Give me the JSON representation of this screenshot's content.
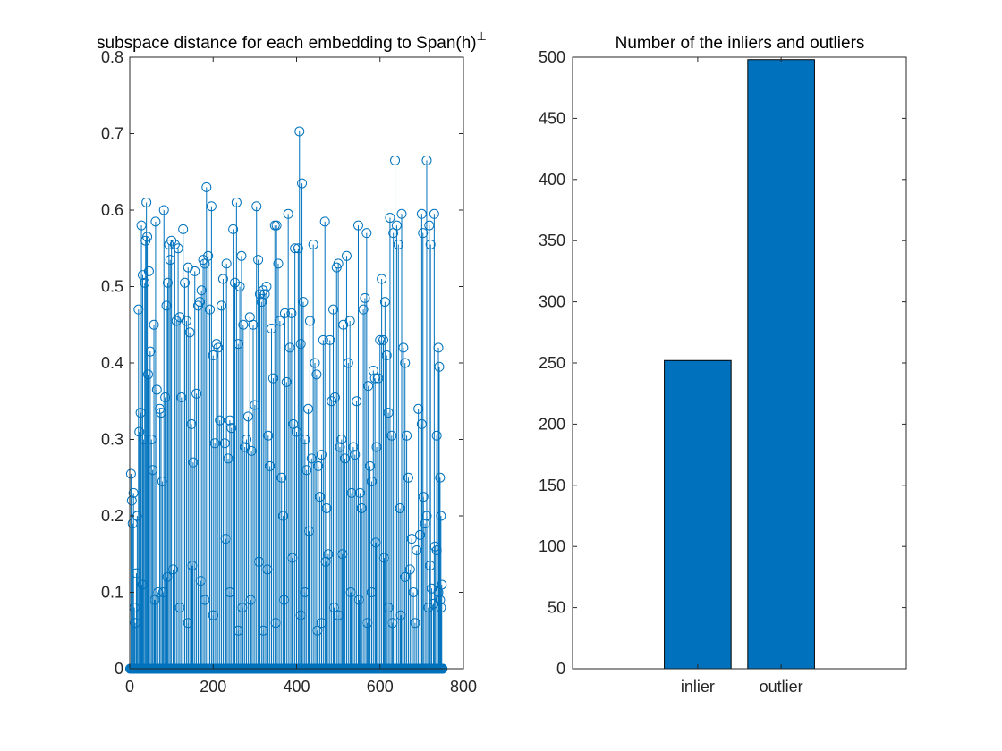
{
  "chart_data": [
    {
      "type": "stem",
      "title": "subspace distance for each embedding to Span(h)",
      "title_superscript": "⊥",
      "xlim": [
        0,
        800
      ],
      "ylim": [
        0,
        0.8
      ],
      "x_ticks": [
        "0",
        "200",
        "400",
        "600",
        "800"
      ],
      "y_ticks": [
        "0",
        "0.1",
        "0.2",
        "0.3",
        "0.4",
        "0.5",
        "0.6",
        "0.7",
        "0.8"
      ],
      "n_points": 750,
      "n_nonzero": 252,
      "color": "#0072BD",
      "marker": "circle",
      "grid": false,
      "points": [
        [
          3,
          0.255
        ],
        [
          5,
          0.22
        ],
        [
          7,
          0.19
        ],
        [
          9,
          0.23
        ],
        [
          11,
          0.08
        ],
        [
          13,
          0.06
        ],
        [
          16,
          0.125
        ],
        [
          18,
          0.2
        ],
        [
          21,
          0.47
        ],
        [
          23,
          0.31
        ],
        [
          26,
          0.335
        ],
        [
          28,
          0.58
        ],
        [
          31,
          0.515
        ],
        [
          33,
          0.3
        ],
        [
          36,
          0.505
        ],
        [
          38,
          0.56
        ],
        [
          40,
          0.61
        ],
        [
          42,
          0.565
        ],
        [
          44,
          0.385
        ],
        [
          46,
          0.52
        ],
        [
          49,
          0.415
        ],
        [
          52,
          0.3
        ],
        [
          55,
          0.26
        ],
        [
          58,
          0.45
        ],
        [
          62,
          0.585
        ],
        [
          65,
          0.365
        ],
        [
          68,
          0.1
        ],
        [
          72,
          0.34
        ],
        [
          75,
          0.335
        ],
        [
          78,
          0.245
        ],
        [
          82,
          0.6
        ],
        [
          85,
          0.355
        ],
        [
          88,
          0.475
        ],
        [
          91,
          0.505
        ],
        [
          94,
          0.555
        ],
        [
          97,
          0.535
        ],
        [
          100,
          0.56
        ],
        [
          104,
          0.13
        ],
        [
          108,
          0.555
        ],
        [
          112,
          0.455
        ],
        [
          116,
          0.55
        ],
        [
          120,
          0.46
        ],
        [
          124,
          0.355
        ],
        [
          128,
          0.575
        ],
        [
          132,
          0.505
        ],
        [
          136,
          0.455
        ],
        [
          140,
          0.525
        ],
        [
          144,
          0.44
        ],
        [
          148,
          0.32
        ],
        [
          152,
          0.27
        ],
        [
          156,
          0.52
        ],
        [
          160,
          0.36
        ],
        [
          164,
          0.475
        ],
        [
          168,
          0.48
        ],
        [
          172,
          0.495
        ],
        [
          176,
          0.535
        ],
        [
          180,
          0.53
        ],
        [
          184,
          0.63
        ],
        [
          188,
          0.54
        ],
        [
          192,
          0.47
        ],
        [
          196,
          0.605
        ],
        [
          200,
          0.41
        ],
        [
          204,
          0.295
        ],
        [
          208,
          0.425
        ],
        [
          212,
          0.42
        ],
        [
          216,
          0.325
        ],
        [
          220,
          0.475
        ],
        [
          224,
          0.51
        ],
        [
          228,
          0.295
        ],
        [
          232,
          0.53
        ],
        [
          236,
          0.275
        ],
        [
          240,
          0.325
        ],
        [
          244,
          0.315
        ],
        [
          248,
          0.575
        ],
        [
          252,
          0.505
        ],
        [
          256,
          0.61
        ],
        [
          260,
          0.425
        ],
        [
          264,
          0.5
        ],
        [
          268,
          0.54
        ],
        [
          272,
          0.45
        ],
        [
          276,
          0.29
        ],
        [
          280,
          0.3
        ],
        [
          284,
          0.33
        ],
        [
          288,
          0.46
        ],
        [
          292,
          0.285
        ],
        [
          296,
          0.45
        ],
        [
          300,
          0.345
        ],
        [
          304,
          0.605
        ],
        [
          308,
          0.535
        ],
        [
          312,
          0.49
        ],
        [
          316,
          0.48
        ],
        [
          320,
          0.495
        ],
        [
          324,
          0.49
        ],
        [
          328,
          0.5
        ],
        [
          332,
          0.305
        ],
        [
          336,
          0.265
        ],
        [
          340,
          0.445
        ],
        [
          344,
          0.38
        ],
        [
          348,
          0.58
        ],
        [
          352,
          0.58
        ],
        [
          356,
          0.53
        ],
        [
          360,
          0.455
        ],
        [
          364,
          0.25
        ],
        [
          368,
          0.2
        ],
        [
          372,
          0.465
        ],
        [
          376,
          0.375
        ],
        [
          380,
          0.595
        ],
        [
          384,
          0.42
        ],
        [
          388,
          0.465
        ],
        [
          392,
          0.32
        ],
        [
          396,
          0.55
        ],
        [
          400,
          0.31
        ],
        [
          404,
          0.55
        ],
        [
          407,
          0.703
        ],
        [
          410,
          0.425
        ],
        [
          413,
          0.635
        ],
        [
          416,
          0.48
        ],
        [
          420,
          0.3
        ],
        [
          424,
          0.26
        ],
        [
          428,
          0.34
        ],
        [
          432,
          0.455
        ],
        [
          436,
          0.275
        ],
        [
          440,
          0.555
        ],
        [
          444,
          0.4
        ],
        [
          448,
          0.385
        ],
        [
          452,
          0.265
        ],
        [
          456,
          0.225
        ],
        [
          460,
          0.28
        ],
        [
          464,
          0.43
        ],
        [
          468,
          0.585
        ],
        [
          472,
          0.21
        ],
        [
          476,
          0.15
        ],
        [
          480,
          0.43
        ],
        [
          484,
          0.35
        ],
        [
          488,
          0.47
        ],
        [
          492,
          0.355
        ],
        [
          496,
          0.525
        ],
        [
          500,
          0.53
        ],
        [
          504,
          0.29
        ],
        [
          508,
          0.3
        ],
        [
          512,
          0.45
        ],
        [
          516,
          0.275
        ],
        [
          520,
          0.54
        ],
        [
          524,
          0.4
        ],
        [
          528,
          0.455
        ],
        [
          532,
          0.23
        ],
        [
          536,
          0.29
        ],
        [
          540,
          0.28
        ],
        [
          544,
          0.35
        ],
        [
          548,
          0.58
        ],
        [
          552,
          0.23
        ],
        [
          556,
          0.21
        ],
        [
          560,
          0.47
        ],
        [
          564,
          0.485
        ],
        [
          568,
          0.57
        ],
        [
          572,
          0.37
        ],
        [
          576,
          0.265
        ],
        [
          580,
          0.245
        ],
        [
          584,
          0.39
        ],
        [
          588,
          0.38
        ],
        [
          592,
          0.29
        ],
        [
          596,
          0.38
        ],
        [
          600,
          0.43
        ],
        [
          604,
          0.51
        ],
        [
          608,
          0.43
        ],
        [
          612,
          0.48
        ],
        [
          616,
          0.41
        ],
        [
          620,
          0.335
        ],
        [
          624,
          0.59
        ],
        [
          628,
          0.305
        ],
        [
          632,
          0.57
        ],
        [
          636,
          0.665
        ],
        [
          640,
          0.58
        ],
        [
          644,
          0.555
        ],
        [
          648,
          0.21
        ],
        [
          652,
          0.595
        ],
        [
          656,
          0.42
        ],
        [
          660,
          0.4
        ],
        [
          664,
          0.305
        ],
        [
          668,
          0.25
        ],
        [
          672,
          0.13
        ],
        [
          676,
          0.17
        ],
        [
          680,
          0.1
        ],
        [
          684,
          0.06
        ],
        [
          688,
          0.155
        ],
        [
          692,
          0.34
        ],
        [
          696,
          0.175
        ],
        [
          700,
          0.32
        ],
        [
          704,
          0.225
        ],
        [
          708,
          0.19
        ],
        [
          712,
          0.2
        ],
        [
          716,
          0.08
        ],
        [
          720,
          0.135
        ],
        [
          724,
          0.105
        ],
        [
          728,
          0.085
        ],
        [
          732,
          0.16
        ],
        [
          736,
          0.155
        ],
        [
          740,
          0.1
        ],
        [
          744,
          0.09
        ],
        [
          746,
          0.2
        ],
        [
          700,
          0.595
        ],
        [
          703,
          0.57
        ],
        [
          712,
          0.665
        ],
        [
          718,
          0.58
        ],
        [
          721,
          0.555
        ],
        [
          730,
          0.595
        ],
        [
          736,
          0.305
        ],
        [
          740,
          0.42
        ],
        [
          742,
          0.395
        ],
        [
          744,
          0.25
        ],
        [
          748,
          0.11
        ],
        [
          746,
          0.08
        ],
        [
          150,
          0.135
        ],
        [
          170,
          0.115
        ],
        [
          230,
          0.17
        ],
        [
          310,
          0.14
        ],
        [
          330,
          0.13
        ],
        [
          390,
          0.145
        ],
        [
          430,
          0.18
        ],
        [
          470,
          0.14
        ],
        [
          510,
          0.15
        ],
        [
          590,
          0.165
        ],
        [
          610,
          0.145
        ],
        [
          660,
          0.12
        ],
        [
          60,
          0.09
        ],
        [
          90,
          0.12
        ],
        [
          120,
          0.08
        ],
        [
          200,
          0.07
        ],
        [
          260,
          0.05
        ],
        [
          290,
          0.09
        ],
        [
          350,
          0.06
        ],
        [
          410,
          0.07
        ],
        [
          450,
          0.05
        ],
        [
          490,
          0.08
        ],
        [
          530,
          0.1
        ],
        [
          570,
          0.06
        ],
        [
          620,
          0.08
        ],
        [
          650,
          0.07
        ],
        [
          30,
          0.11
        ],
        [
          80,
          0.1
        ],
        [
          140,
          0.06
        ],
        [
          180,
          0.09
        ],
        [
          240,
          0.1
        ],
        [
          270,
          0.08
        ],
        [
          320,
          0.05
        ],
        [
          370,
          0.09
        ],
        [
          420,
          0.1
        ],
        [
          460,
          0.06
        ],
        [
          500,
          0.07
        ],
        [
          550,
          0.09
        ],
        [
          580,
          0.1
        ],
        [
          630,
          0.06
        ]
      ]
    },
    {
      "type": "bar",
      "title": "Number of the inliers and outliers",
      "categories": [
        "inlier",
        "outlier"
      ],
      "values": [
        252,
        498
      ],
      "ylim": [
        0,
        500
      ],
      "y_ticks": [
        "0",
        "50",
        "100",
        "150",
        "200",
        "250",
        "300",
        "350",
        "400",
        "450",
        "500"
      ],
      "color": "#0072BD",
      "grid": false
    }
  ]
}
